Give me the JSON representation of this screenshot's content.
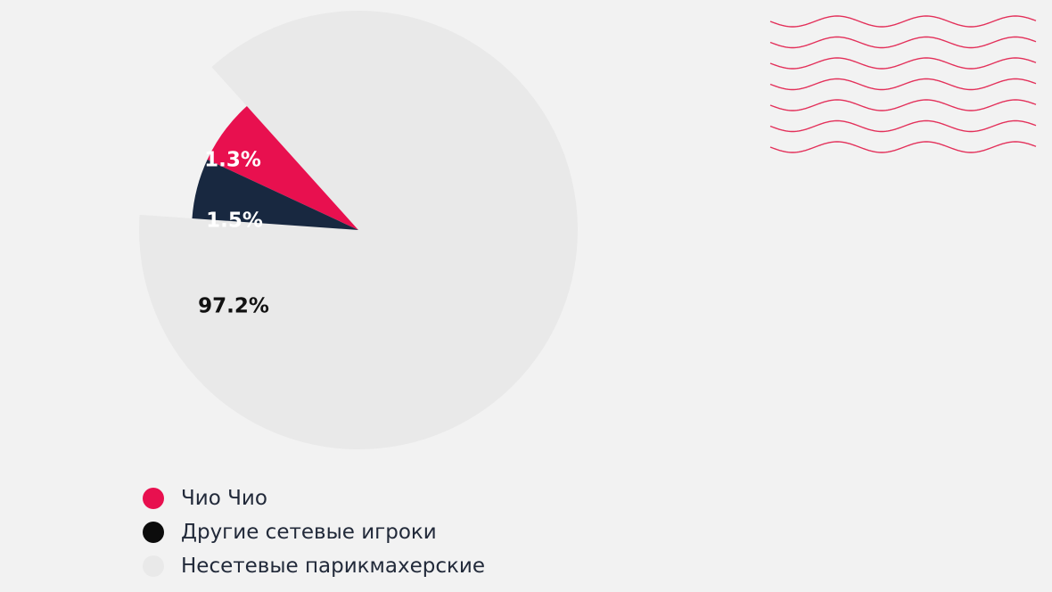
{
  "chart_data": {
    "type": "pie",
    "title": "",
    "slices": [
      {
        "name": "Несетевые парикмахерские",
        "value": 97.2,
        "label": "97.2%",
        "color": "#e9e9e9",
        "label_color": "#111111"
      },
      {
        "name": "Чио Чио",
        "value": 1.5,
        "label": "1.5%",
        "color": "#e8104f",
        "label_color": "#ffffff"
      },
      {
        "name": "Другие сетевые игроки",
        "value": 1.3,
        "label": "1.3%",
        "color": "#182840",
        "label_color": "#ffffff"
      }
    ],
    "legend_position": "bottom-left"
  },
  "legend": [
    {
      "label": "Чио Чио",
      "color": "#e8104f"
    },
    {
      "label": "Другие сетевые игроки",
      "color": "#0c0c0c"
    },
    {
      "label": "Несетевые парикмахерские",
      "color": "#e9e9e9"
    }
  ],
  "decoration": {
    "icon": "wave-lines-icon",
    "color": "#e3305a"
  }
}
